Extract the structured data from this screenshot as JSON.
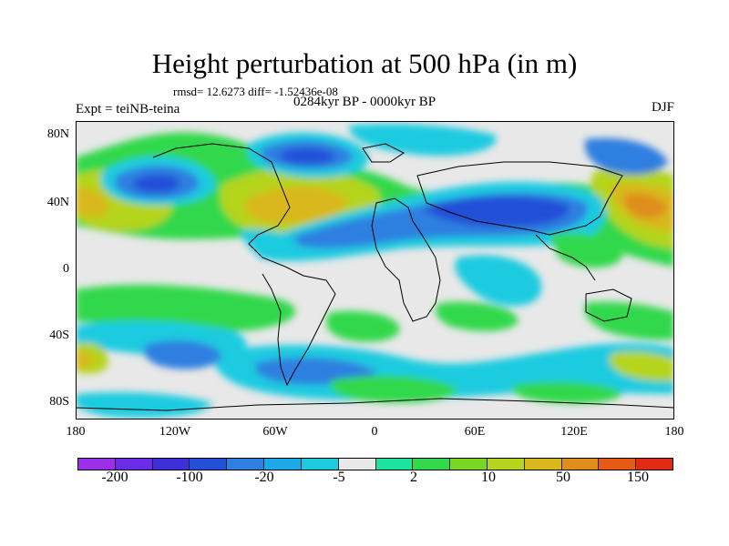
{
  "title": "Height perturbation at 500 hPa (in m)",
  "stats": "rmsd= 12.6273 diff= -1.52436e-08",
  "experiment": "Expt = teiNB-teina",
  "period": "0284kyr BP - 0000kyr BP",
  "season": "DJF",
  "y_ticks": [
    "80N",
    "40N",
    "0",
    "40S",
    "80S"
  ],
  "x_ticks": [
    "180",
    "120W",
    "60W",
    "0",
    "60E",
    "120E",
    "180"
  ],
  "colorbar": {
    "colors": [
      "#9b30e8",
      "#6a2ce6",
      "#3e2fd6",
      "#2450d8",
      "#2f7fe0",
      "#1da9e8",
      "#1dcbe0",
      "#e8e8e8",
      "#1de3a0",
      "#33d84b",
      "#7ad623",
      "#b5d41d",
      "#d8b81d",
      "#df8d1b",
      "#e45a16",
      "#e22b16"
    ],
    "labels": [
      "-200",
      "-100",
      "-20",
      "-5",
      "2",
      "10",
      "50",
      "150"
    ]
  }
}
